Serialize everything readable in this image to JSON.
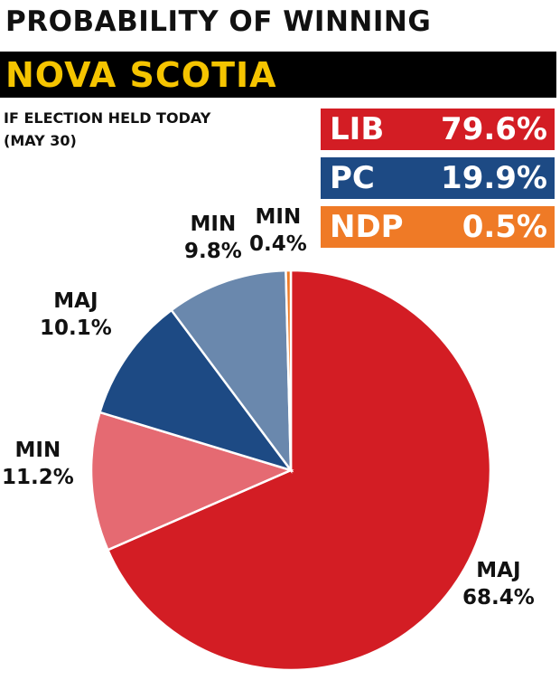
{
  "header": {
    "title": "PROBABILITY OF WINNING",
    "region": "NOVA SCOTIA",
    "subtitle_line1": "IF ELECTION HELD TODAY",
    "subtitle_line2": "(MAY 30)"
  },
  "legend": [
    {
      "party": "LIB",
      "value": "79.6%",
      "color": "#d31d24"
    },
    {
      "party": "PC",
      "value": "19.9%",
      "color": "#1d4a84"
    },
    {
      "party": "NDP",
      "value": "0.5%",
      "color": "#ef7a26"
    }
  ],
  "chart_data": {
    "type": "pie",
    "title": "PROBABILITY OF WINNING",
    "slices": [
      {
        "party": "LIB",
        "outcome": "MAJ",
        "value": 68.4,
        "label": "68.4%",
        "color": "#d31d24"
      },
      {
        "party": "LIB",
        "outcome": "MIN",
        "value": 11.2,
        "label": "11.2%",
        "color": "#e56a72"
      },
      {
        "party": "PC",
        "outcome": "MAJ",
        "value": 10.1,
        "label": "10.1%",
        "color": "#1d4a84"
      },
      {
        "party": "PC",
        "outcome": "MIN",
        "value": 9.8,
        "label": "9.8%",
        "color": "#6a88ad"
      },
      {
        "party": "NDP",
        "outcome": "MIN",
        "value": 0.4,
        "label": "0.4%",
        "color": "#ef7a26"
      }
    ]
  }
}
